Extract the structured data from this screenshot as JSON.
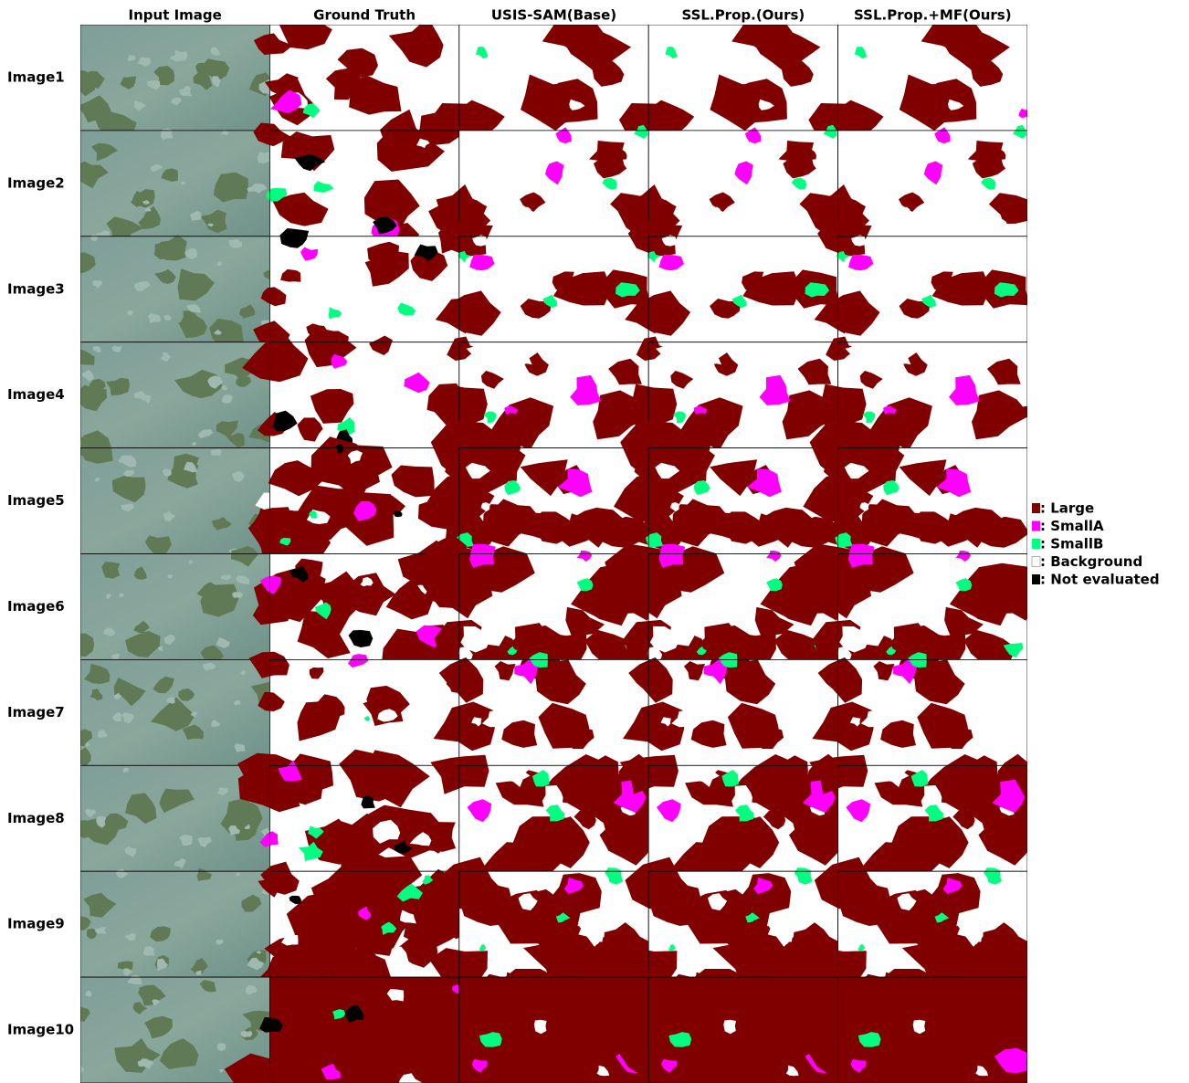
{
  "figure": {
    "columns": [
      "Input Image",
      "Ground Truth",
      "USIS-SAM(Base)",
      "SSL.Prop.(Ours)",
      "SSL.Prop.+MF(Ours)"
    ],
    "rows": [
      "Image1",
      "Image2",
      "Image3",
      "Image4",
      "Image5",
      "Image6",
      "Image7",
      "Image8",
      "Image9",
      "Image10"
    ],
    "legend": [
      {
        "label": ": Large",
        "color": "#800000"
      },
      {
        "label": ": SmallA",
        "color": "#ff00ff"
      },
      {
        "label": ": SmallB",
        "color": "#00ff80"
      },
      {
        "label": ": Background",
        "color": "#ffffff"
      },
      {
        "label": ": Not evaluated",
        "color": "#000000"
      }
    ]
  }
}
